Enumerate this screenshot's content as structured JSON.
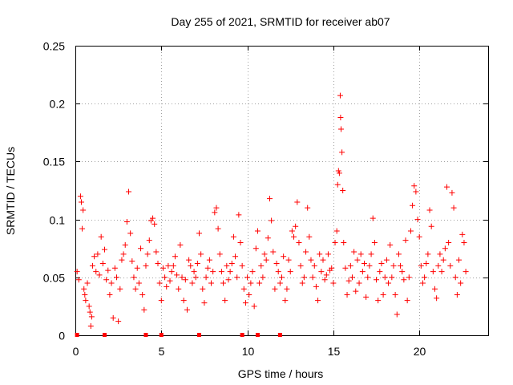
{
  "chart_data": {
    "type": "scatter",
    "title": "Day 255 of 2021, SRMTID for receiver ab07",
    "xlabel": "GPS time / hours",
    "ylabel": "SRMTID / TECUs",
    "xlim": [
      0,
      24
    ],
    "ylim": [
      0,
      0.25
    ],
    "xticks": [
      0,
      5,
      10,
      15,
      20
    ],
    "yticks": [
      0,
      0.05,
      0.1,
      0.15,
      0.2,
      0.25
    ],
    "xtick_labels": [
      "0",
      "5",
      "10",
      "15",
      "20"
    ],
    "ytick_labels": [
      "0",
      "0.05",
      "0.1",
      "0.15",
      "0.2",
      "0.25"
    ],
    "grid": true,
    "marker": "+",
    "color": "#ff0000",
    "baseline_markers_x": [
      0.1,
      1.7,
      4.1,
      5.0,
      7.2,
      9.7,
      10.6,
      11.9
    ],
    "series": [
      {
        "name": "SRMTID",
        "points": [
          [
            0.1,
            0.055
          ],
          [
            0.2,
            0.048
          ],
          [
            0.3,
            0.12
          ],
          [
            0.35,
            0.115
          ],
          [
            0.4,
            0.092
          ],
          [
            0.45,
            0.108
          ],
          [
            0.5,
            0.04
          ],
          [
            0.55,
            0.035
          ],
          [
            0.6,
            0.03
          ],
          [
            0.7,
            0.045
          ],
          [
            0.8,
            0.025
          ],
          [
            0.85,
            0.02
          ],
          [
            0.9,
            0.008
          ],
          [
            0.95,
            0.016
          ],
          [
            1.0,
            0.06
          ],
          [
            1.1,
            0.068
          ],
          [
            1.2,
            0.055
          ],
          [
            1.3,
            0.07
          ],
          [
            1.4,
            0.052
          ],
          [
            1.5,
            0.085
          ],
          [
            1.6,
            0.062
          ],
          [
            1.7,
            0.074
          ],
          [
            1.8,
            0.048
          ],
          [
            1.9,
            0.056
          ],
          [
            2.0,
            0.035
          ],
          [
            2.1,
            0.045
          ],
          [
            2.2,
            0.015
          ],
          [
            2.3,
            0.058
          ],
          [
            2.4,
            0.05
          ],
          [
            2.5,
            0.012
          ],
          [
            2.6,
            0.04
          ],
          [
            2.7,
            0.065
          ],
          [
            2.8,
            0.07
          ],
          [
            2.9,
            0.078
          ],
          [
            3.0,
            0.098
          ],
          [
            3.1,
            0.124
          ],
          [
            3.2,
            0.088
          ],
          [
            3.3,
            0.064
          ],
          [
            3.4,
            0.05
          ],
          [
            3.5,
            0.04
          ],
          [
            3.6,
            0.058
          ],
          [
            3.7,
            0.045
          ],
          [
            3.8,
            0.075
          ],
          [
            3.9,
            0.035
          ],
          [
            4.0,
            0.022
          ],
          [
            4.1,
            0.06
          ],
          [
            4.2,
            0.07
          ],
          [
            4.3,
            0.082
          ],
          [
            4.4,
            0.099
          ],
          [
            4.5,
            0.101
          ],
          [
            4.6,
            0.096
          ],
          [
            4.7,
            0.072
          ],
          [
            4.8,
            0.062
          ],
          [
            4.9,
            0.045
          ],
          [
            5.0,
            0.03
          ],
          [
            5.1,
            0.058
          ],
          [
            5.2,
            0.05
          ],
          [
            5.3,
            0.042
          ],
          [
            5.4,
            0.06
          ],
          [
            5.5,
            0.047
          ],
          [
            5.6,
            0.055
          ],
          [
            5.7,
            0.06
          ],
          [
            5.8,
            0.068
          ],
          [
            5.9,
            0.052
          ],
          [
            6.0,
            0.04
          ],
          [
            6.1,
            0.078
          ],
          [
            6.2,
            0.05
          ],
          [
            6.3,
            0.03
          ],
          [
            6.4,
            0.048
          ],
          [
            6.5,
            0.022
          ],
          [
            6.6,
            0.065
          ],
          [
            6.7,
            0.06
          ],
          [
            6.8,
            0.045
          ],
          [
            6.9,
            0.055
          ],
          [
            7.0,
            0.05
          ],
          [
            7.1,
            0.062
          ],
          [
            7.2,
            0.088
          ],
          [
            7.3,
            0.07
          ],
          [
            7.4,
            0.04
          ],
          [
            7.5,
            0.028
          ],
          [
            7.6,
            0.05
          ],
          [
            7.7,
            0.058
          ],
          [
            7.8,
            0.065
          ],
          [
            7.9,
            0.045
          ],
          [
            8.0,
            0.055
          ],
          [
            8.1,
            0.106
          ],
          [
            8.2,
            0.11
          ],
          [
            8.3,
            0.092
          ],
          [
            8.4,
            0.07
          ],
          [
            8.5,
            0.055
          ],
          [
            8.6,
            0.045
          ],
          [
            8.7,
            0.03
          ],
          [
            8.8,
            0.06
          ],
          [
            8.9,
            0.048
          ],
          [
            9.0,
            0.055
          ],
          [
            9.1,
            0.062
          ],
          [
            9.2,
            0.085
          ],
          [
            9.3,
            0.068
          ],
          [
            9.4,
            0.05
          ],
          [
            9.5,
            0.104
          ],
          [
            9.6,
            0.08
          ],
          [
            9.7,
            0.06
          ],
          [
            9.8,
            0.04
          ],
          [
            9.9,
            0.028
          ],
          [
            10.0,
            0.05
          ],
          [
            10.1,
            0.035
          ],
          [
            10.2,
            0.045
          ],
          [
            10.3,
            0.055
          ],
          [
            10.4,
            0.025
          ],
          [
            10.5,
            0.075
          ],
          [
            10.6,
            0.09
          ],
          [
            10.7,
            0.045
          ],
          [
            10.8,
            0.06
          ],
          [
            10.9,
            0.05
          ],
          [
            11.0,
            0.07
          ],
          [
            11.1,
            0.065
          ],
          [
            11.2,
            0.084
          ],
          [
            11.3,
            0.118
          ],
          [
            11.4,
            0.099
          ],
          [
            11.5,
            0.072
          ],
          [
            11.6,
            0.04
          ],
          [
            11.7,
            0.062
          ],
          [
            11.8,
            0.055
          ],
          [
            11.9,
            0.045
          ],
          [
            12.0,
            0.05
          ],
          [
            12.1,
            0.068
          ],
          [
            12.2,
            0.03
          ],
          [
            12.3,
            0.04
          ],
          [
            12.4,
            0.065
          ],
          [
            12.5,
            0.055
          ],
          [
            12.6,
            0.09
          ],
          [
            12.7,
            0.085
          ],
          [
            12.8,
            0.094
          ],
          [
            12.9,
            0.115
          ],
          [
            13.0,
            0.08
          ],
          [
            13.1,
            0.06
          ],
          [
            13.2,
            0.045
          ],
          [
            13.3,
            0.05
          ],
          [
            13.4,
            0.072
          ],
          [
            13.5,
            0.11
          ],
          [
            13.6,
            0.085
          ],
          [
            13.7,
            0.065
          ],
          [
            13.8,
            0.05
          ],
          [
            13.9,
            0.06
          ],
          [
            14.0,
            0.042
          ],
          [
            14.1,
            0.03
          ],
          [
            14.2,
            0.07
          ],
          [
            14.3,
            0.055
          ],
          [
            14.4,
            0.065
          ],
          [
            14.5,
            0.048
          ],
          [
            14.6,
            0.052
          ],
          [
            14.7,
            0.07
          ],
          [
            14.8,
            0.056
          ],
          [
            14.9,
            0.058
          ],
          [
            15.0,
            0.045
          ],
          [
            15.1,
            0.08
          ],
          [
            15.2,
            0.09
          ],
          [
            15.25,
            0.13
          ],
          [
            15.3,
            0.142
          ],
          [
            15.35,
            0.14
          ],
          [
            15.4,
            0.207
          ],
          [
            15.42,
            0.188
          ],
          [
            15.45,
            0.178
          ],
          [
            15.5,
            0.158
          ],
          [
            15.55,
            0.125
          ],
          [
            15.6,
            0.08
          ],
          [
            15.7,
            0.058
          ],
          [
            15.8,
            0.035
          ],
          [
            15.9,
            0.047
          ],
          [
            16.0,
            0.06
          ],
          [
            16.1,
            0.05
          ],
          [
            16.2,
            0.072
          ],
          [
            16.3,
            0.038
          ],
          [
            16.4,
            0.065
          ],
          [
            16.5,
            0.045
          ],
          [
            16.6,
            0.07
          ],
          [
            16.7,
            0.055
          ],
          [
            16.8,
            0.062
          ],
          [
            16.9,
            0.033
          ],
          [
            17.0,
            0.05
          ],
          [
            17.1,
            0.06
          ],
          [
            17.2,
            0.07
          ],
          [
            17.3,
            0.101
          ],
          [
            17.4,
            0.08
          ],
          [
            17.5,
            0.048
          ],
          [
            17.6,
            0.03
          ],
          [
            17.7,
            0.055
          ],
          [
            17.8,
            0.062
          ],
          [
            17.9,
            0.035
          ],
          [
            18.0,
            0.05
          ],
          [
            18.1,
            0.065
          ],
          [
            18.2,
            0.045
          ],
          [
            18.3,
            0.078
          ],
          [
            18.4,
            0.05
          ],
          [
            18.5,
            0.06
          ],
          [
            18.6,
            0.035
          ],
          [
            18.7,
            0.018
          ],
          [
            18.8,
            0.07
          ],
          [
            18.9,
            0.06
          ],
          [
            19.0,
            0.055
          ],
          [
            19.1,
            0.048
          ],
          [
            19.2,
            0.082
          ],
          [
            19.3,
            0.03
          ],
          [
            19.4,
            0.05
          ],
          [
            19.5,
            0.09
          ],
          [
            19.6,
            0.112
          ],
          [
            19.7,
            0.129
          ],
          [
            19.8,
            0.124
          ],
          [
            19.9,
            0.1
          ],
          [
            20.0,
            0.085
          ],
          [
            20.1,
            0.06
          ],
          [
            20.2,
            0.045
          ],
          [
            20.3,
            0.05
          ],
          [
            20.4,
            0.062
          ],
          [
            20.5,
            0.07
          ],
          [
            20.6,
            0.108
          ],
          [
            20.7,
            0.094
          ],
          [
            20.8,
            0.055
          ],
          [
            20.9,
            0.04
          ],
          [
            21.0,
            0.032
          ],
          [
            21.1,
            0.06
          ],
          [
            21.2,
            0.07
          ],
          [
            21.3,
            0.055
          ],
          [
            21.4,
            0.065
          ],
          [
            21.5,
            0.075
          ],
          [
            21.6,
            0.128
          ],
          [
            21.7,
            0.08
          ],
          [
            21.8,
            0.06
          ],
          [
            21.9,
            0.123
          ],
          [
            22.0,
            0.11
          ],
          [
            22.1,
            0.05
          ],
          [
            22.2,
            0.035
          ],
          [
            22.3,
            0.065
          ],
          [
            22.4,
            0.045
          ],
          [
            22.5,
            0.087
          ],
          [
            22.6,
            0.08
          ],
          [
            22.7,
            0.055
          ]
        ]
      }
    ]
  }
}
